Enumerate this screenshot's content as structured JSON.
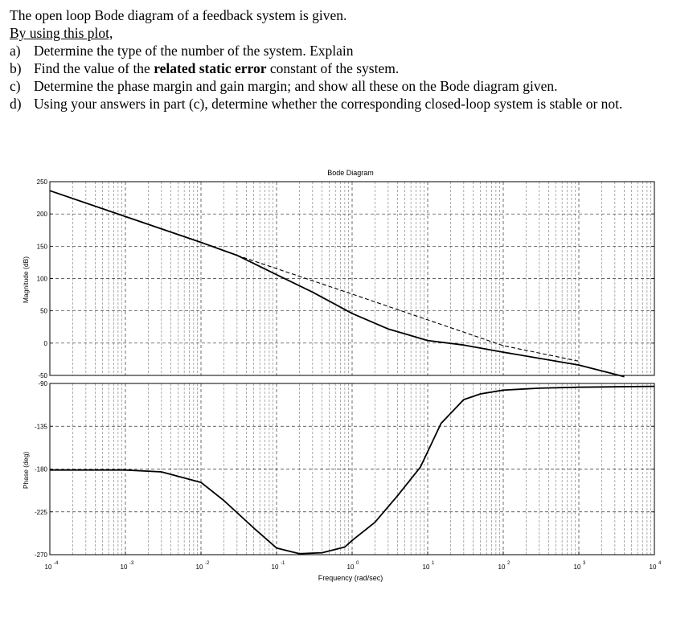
{
  "problem": {
    "intro": "The open loop Bode diagram of a feedback system is given.",
    "instruction": "By using this plot,",
    "questions": [
      {
        "label": "a)",
        "parts": [
          {
            "text": "Determine the type of the number of the system. Explain",
            "bold": false
          }
        ]
      },
      {
        "label": "b)",
        "parts": [
          {
            "text": "Find the value of the ",
            "bold": false
          },
          {
            "text": "related static error",
            "bold": true
          },
          {
            "text": " constant of the system.",
            "bold": false
          }
        ]
      },
      {
        "label": "c)",
        "parts": [
          {
            "text": "Determine the phase margin and gain margin; and show all these on the Bode diagram given.",
            "bold": false
          }
        ]
      },
      {
        "label": "d)",
        "parts": [
          {
            "text": "Using your answers in part (c), determine whether the corresponding closed-loop system is stable or not.",
            "bold": false
          }
        ]
      }
    ]
  },
  "chart_data": {
    "type": "line",
    "title": "Bode Diagram",
    "xlabel": "Frequency (rad/sec)",
    "x_scale": "log",
    "xlim": [
      0.0001,
      10000
    ],
    "x_ticks": [
      {
        "base": "10",
        "exp": "-4"
      },
      {
        "base": "10",
        "exp": "-3"
      },
      {
        "base": "10",
        "exp": "-2"
      },
      {
        "base": "10",
        "exp": "-1"
      },
      {
        "base": "10",
        "exp": "0"
      },
      {
        "base": "10",
        "exp": "1"
      },
      {
        "base": "10",
        "exp": "2"
      },
      {
        "base": "10",
        "exp": "3"
      },
      {
        "base": "10",
        "exp": "4"
      }
    ],
    "grid": true,
    "magnitude": {
      "ylabel": "Magnitude (dB)",
      "ylim": [
        -50,
        250
      ],
      "yticks": [
        "250",
        "200",
        "150",
        "100",
        "50",
        "0",
        "-50"
      ],
      "yvalues": [
        250,
        200,
        150,
        100,
        50,
        0,
        -50
      ],
      "series": [
        {
          "style": "solid",
          "x": [
            0.0001,
            0.001,
            0.01,
            0.03,
            0.1,
            0.3,
            1,
            3,
            10,
            30,
            100,
            1000,
            4000
          ],
          "y": [
            236,
            196,
            156,
            136,
            106,
            79,
            46,
            22,
            4,
            -3,
            -14,
            -34,
            -52
          ]
        },
        {
          "style": "dashed",
          "x": [
            0.03,
            1,
            10,
            100,
            1000
          ],
          "y": [
            136,
            76,
            36,
            -4,
            -28
          ]
        }
      ]
    },
    "phase": {
      "ylabel": "Phase (deg)",
      "ylim": [
        -270,
        -90
      ],
      "yticks": [
        "-90",
        "-135",
        "-180",
        "-225",
        "-270"
      ],
      "yvalues": [
        -90,
        -135,
        -180,
        -225,
        -270
      ],
      "series": [
        {
          "style": "solid",
          "x": [
            0.0001,
            0.001,
            0.003,
            0.01,
            0.02,
            0.05,
            0.1,
            0.2,
            0.4,
            0.8,
            1,
            2,
            4,
            8,
            15,
            30,
            50,
            100,
            300,
            1000,
            10000
          ],
          "y": [
            -181,
            -181,
            -183,
            -194,
            -213,
            -242,
            -263,
            -269,
            -268,
            -262,
            -255,
            -236,
            -208,
            -178,
            -132,
            -107,
            -101,
            -97,
            -95,
            -94,
            -93
          ]
        }
      ]
    }
  }
}
